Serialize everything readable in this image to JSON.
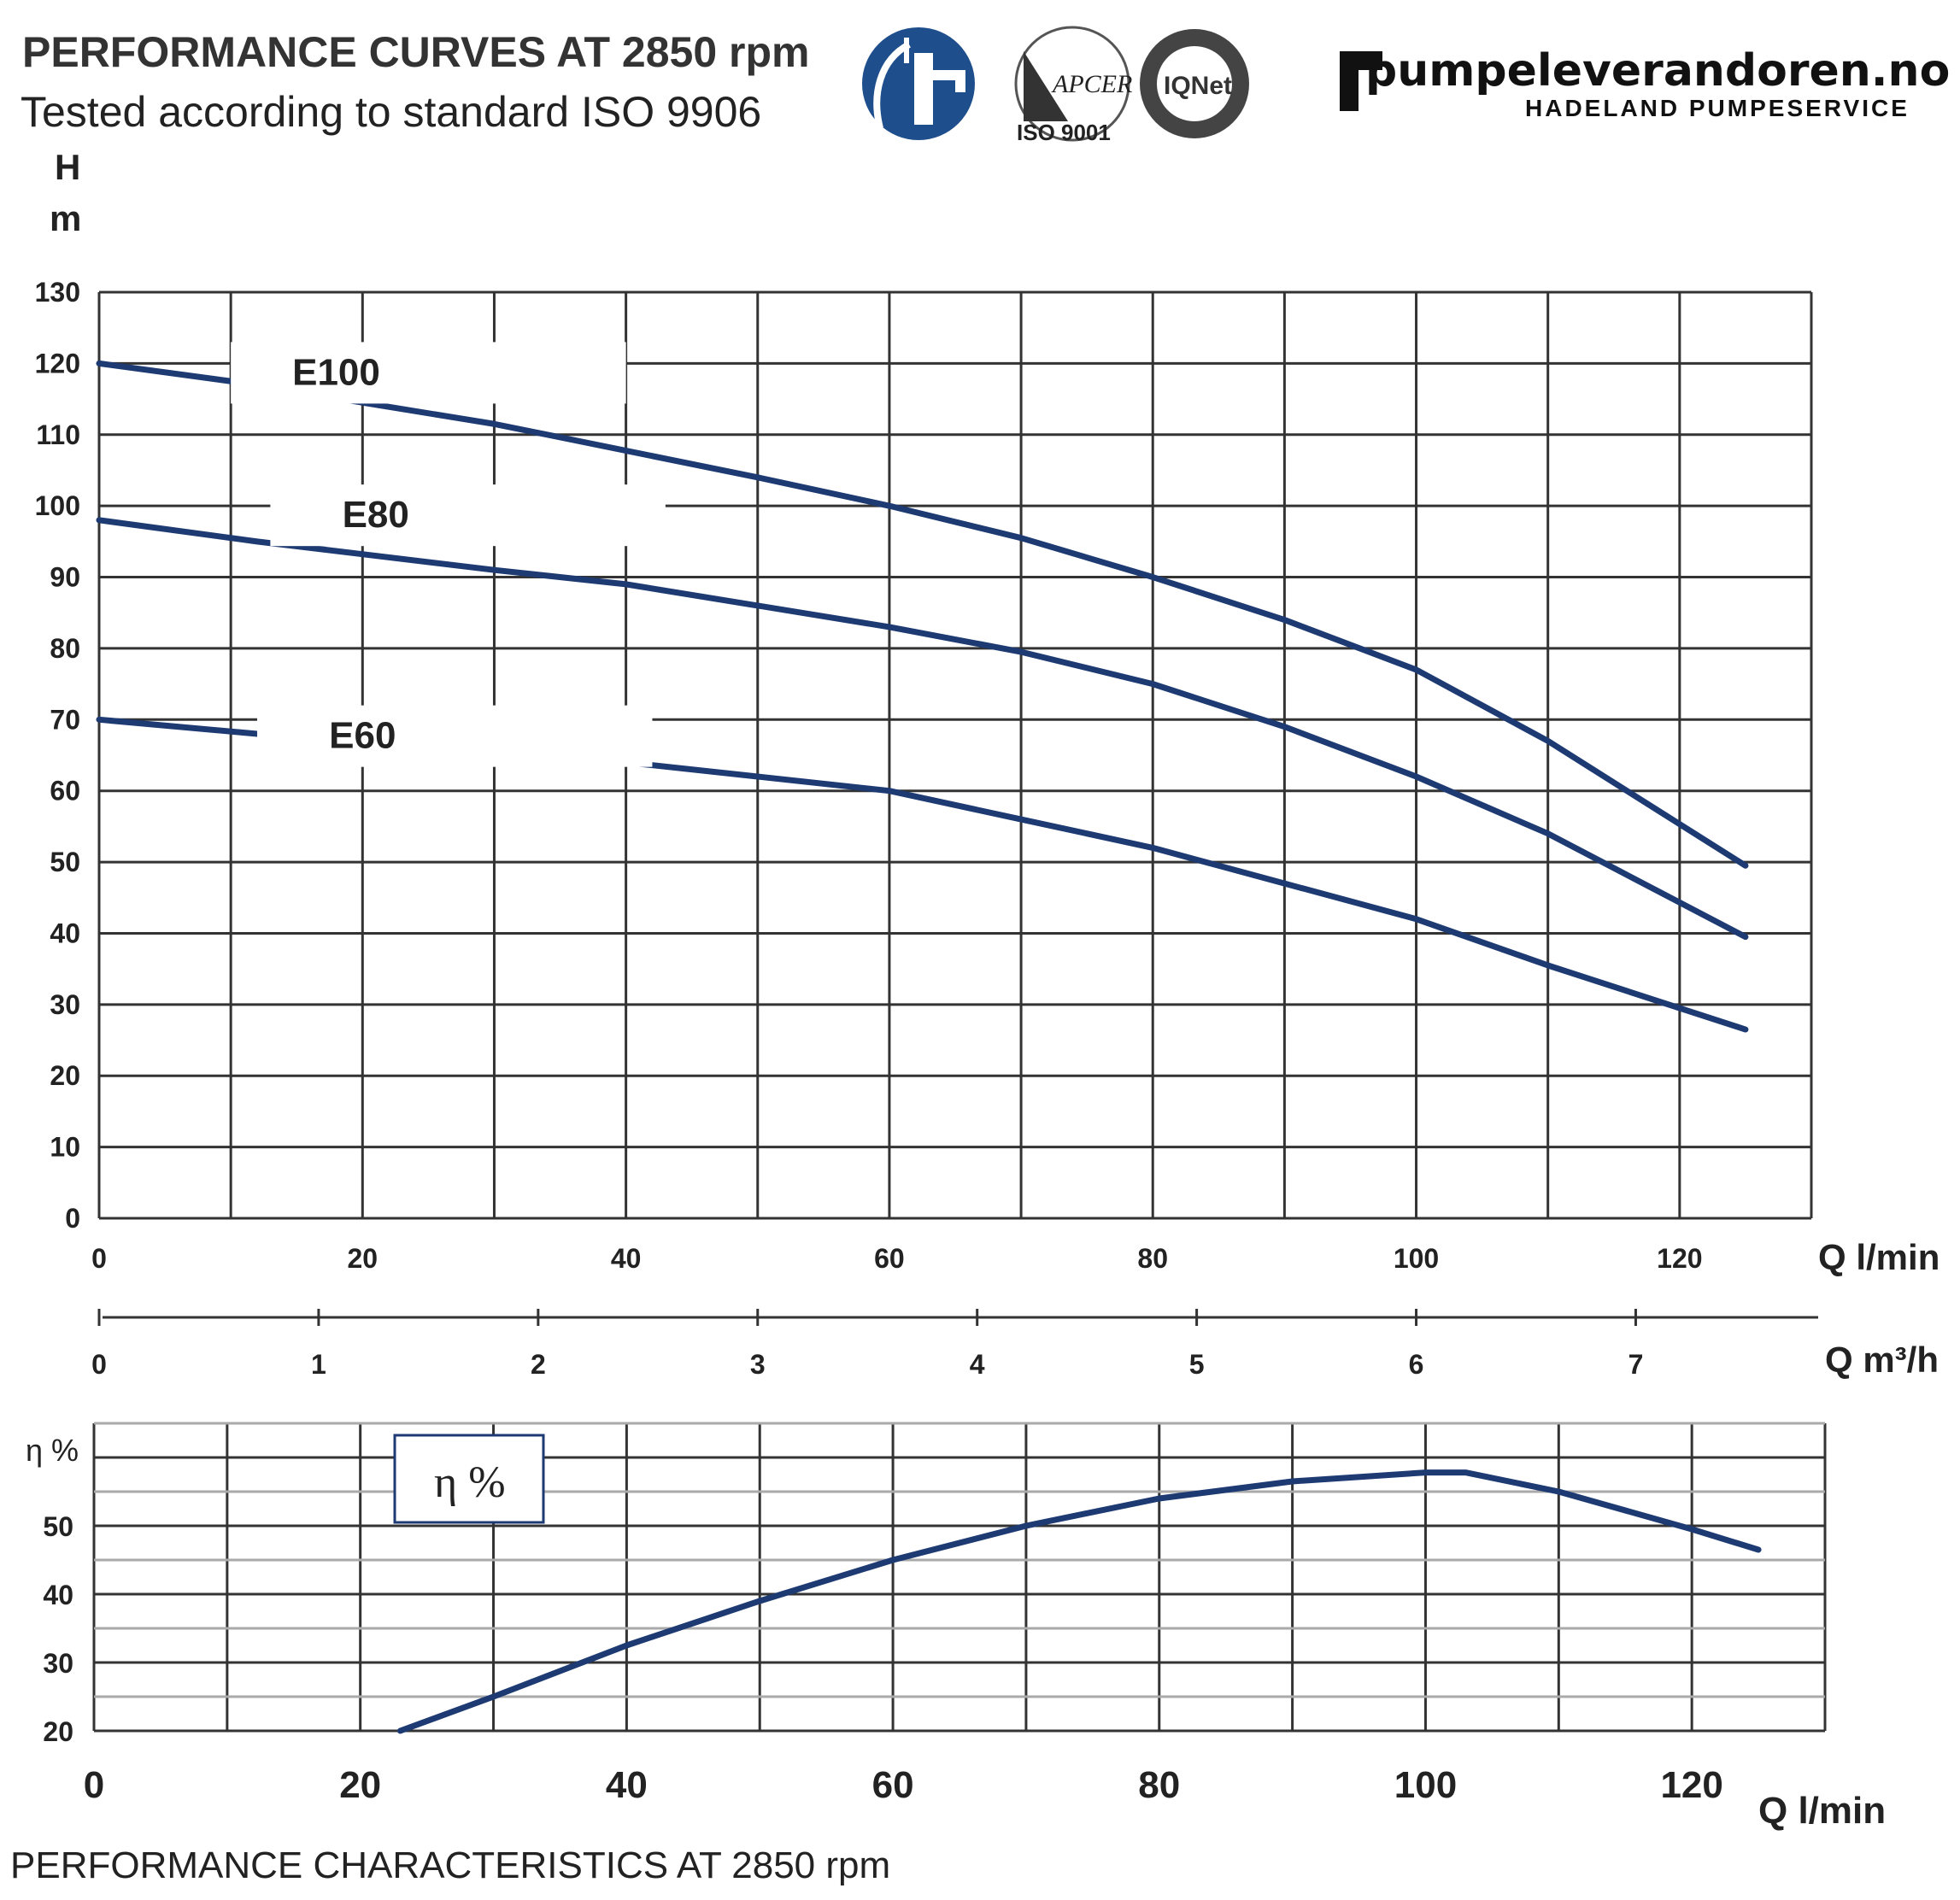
{
  "header": {
    "title": "PERFORMANCE CURVES AT 2850 rpm",
    "subtitle": "Tested according to standard ISO 9906",
    "brand_name": "pumpeleverandoren.no",
    "brand_tagline": "HADELAND PUMPESERVICE",
    "cert_badge_text": "ISO 9001",
    "cert_apcer_text": "APCER",
    "cert_iqnet_text": "IQNet"
  },
  "footer": {
    "text": "PERFORMANCE CHARACTERISTICS AT 2850 rpm"
  },
  "colors": {
    "curve": "#1d3a73",
    "logo_blue": "#1e4f8c"
  },
  "chart_data": [
    {
      "type": "line",
      "ylabel_top": "H",
      "ylabel_unit": "m",
      "xlabel": "Q l/min",
      "xlim": [
        0,
        130
      ],
      "ylim": [
        0,
        130
      ],
      "x_ticks": [
        0,
        20,
        40,
        60,
        80,
        100,
        120
      ],
      "y_ticks": [
        0,
        10,
        20,
        30,
        40,
        50,
        60,
        70,
        80,
        90,
        100,
        110,
        120,
        130
      ],
      "secondary_xlabel": "Q m³/h",
      "secondary_ticks": [
        0,
        1,
        2,
        3,
        4,
        5,
        6,
        7
      ],
      "grid": true,
      "series": [
        {
          "name": "E100",
          "x": [
            0,
            10,
            30,
            50,
            60,
            70,
            80,
            90,
            100,
            110,
            125
          ],
          "y": [
            120,
            117.5,
            111.5,
            104,
            100,
            95.5,
            90,
            84,
            77,
            67,
            49.5
          ]
        },
        {
          "name": "E80",
          "x": [
            0,
            12,
            30,
            40,
            50,
            60,
            70,
            80,
            90,
            100,
            110,
            125
          ],
          "y": [
            98,
            95,
            91,
            89,
            86,
            83,
            79.5,
            75,
            69,
            62,
            54,
            39.5
          ]
        },
        {
          "name": "E60",
          "x": [
            0,
            12,
            32,
            40,
            50,
            60,
            70,
            80,
            90,
            100,
            110,
            125
          ],
          "y": [
            70,
            68,
            65,
            64,
            62,
            60,
            56,
            52,
            47,
            42,
            35.5,
            26.5
          ]
        }
      ]
    },
    {
      "type": "line",
      "ylabel": "η %",
      "xlabel": "Q l/min",
      "xlim": [
        0,
        130
      ],
      "ylim": [
        20,
        65
      ],
      "x_ticks": [
        0,
        20,
        40,
        60,
        80,
        100,
        120
      ],
      "y_ticks": [
        20,
        30,
        40,
        50
      ],
      "grid": true,
      "legend": "η %",
      "series": [
        {
          "name": "η %",
          "x": [
            23,
            30,
            40,
            50,
            60,
            70,
            80,
            90,
            100,
            103,
            110,
            120,
            125
          ],
          "y": [
            20,
            25,
            32.5,
            39,
            45,
            50,
            54,
            56.5,
            57.8,
            57.8,
            55,
            49.5,
            46.5
          ]
        }
      ]
    }
  ]
}
